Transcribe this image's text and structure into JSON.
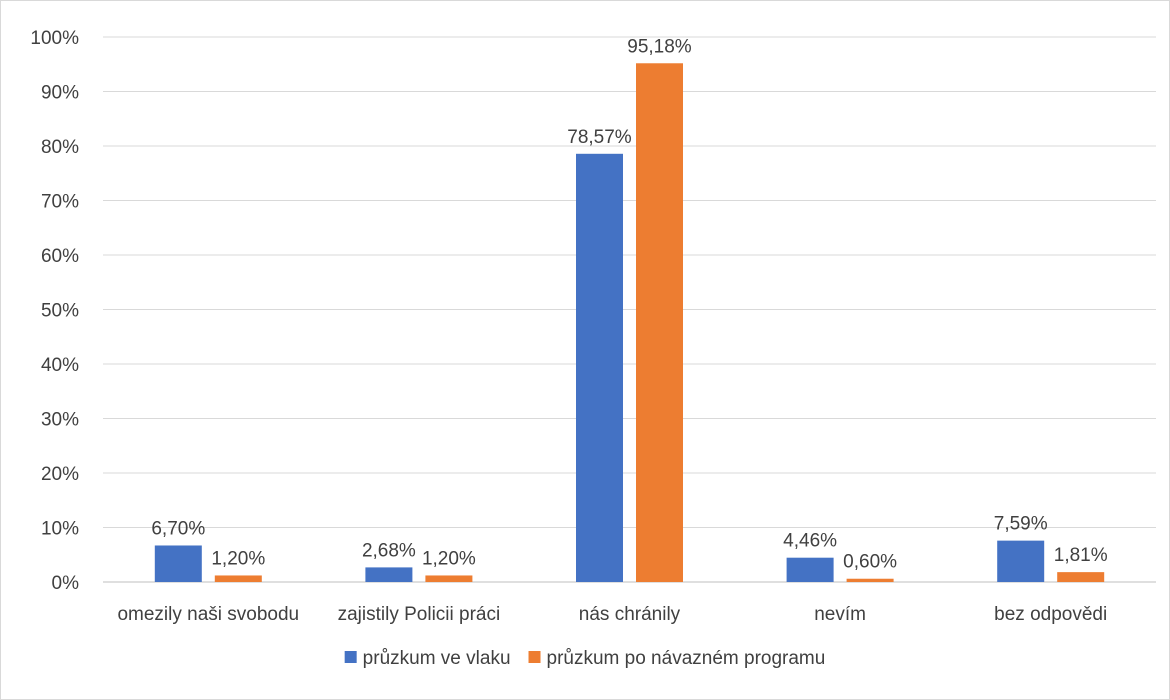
{
  "chart_data": {
    "type": "bar",
    "title": "",
    "xlabel": "",
    "ylabel": "",
    "ylim": [
      0,
      100
    ],
    "yticks": [
      "0%",
      "10%",
      "20%",
      "30%",
      "40%",
      "50%",
      "60%",
      "70%",
      "80%",
      "90%",
      "100%"
    ],
    "categories": [
      "omezily naši svobodu",
      "zajistily Policii práci",
      "nás chránily",
      "nevím",
      "bez odpovědi"
    ],
    "series": [
      {
        "name": "průzkum ve vlaku",
        "color": "#4472c4",
        "values": [
          6.7,
          2.68,
          78.57,
          4.46,
          7.59
        ],
        "labels": [
          "6,70%",
          "2,68%",
          "78,57%",
          "4,46%",
          "7,59%"
        ]
      },
      {
        "name": "průzkum po návazném programu",
        "color": "#ed7d31",
        "values": [
          1.2,
          1.2,
          95.18,
          0.6,
          1.81
        ],
        "labels": [
          "1,20%",
          "1,20%",
          "95,18%",
          "0,60%",
          "1,81%"
        ]
      }
    ],
    "grid": true,
    "legend_position": "bottom"
  }
}
